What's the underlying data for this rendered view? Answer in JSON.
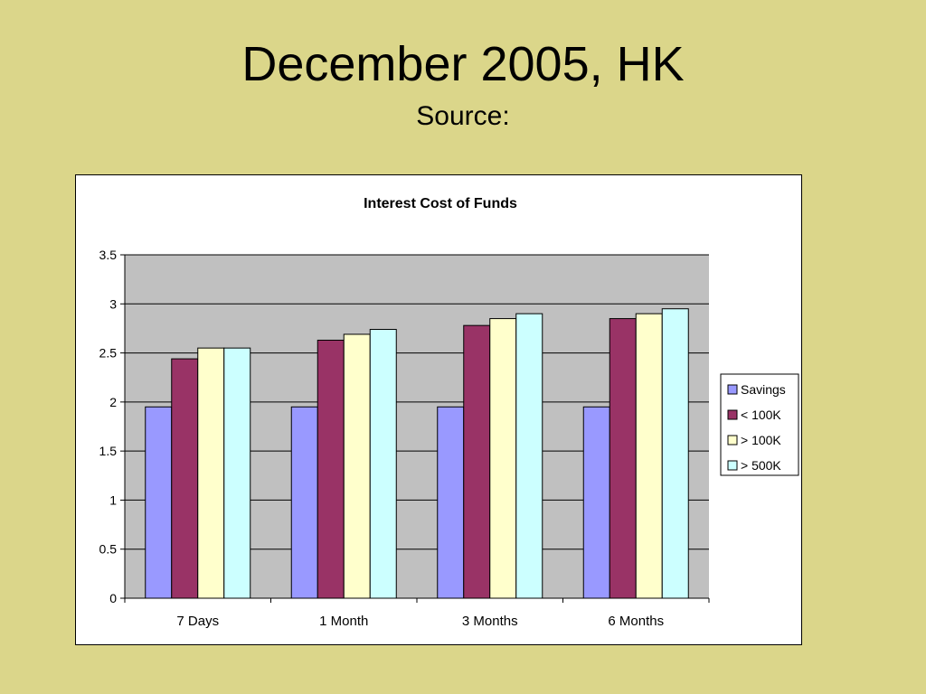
{
  "slide": {
    "title": "December 2005, HK",
    "subtitle": "Source:"
  },
  "chart_data": {
    "type": "bar",
    "title": "Interest Cost of Funds",
    "xlabel": "",
    "ylabel": "",
    "categories": [
      "7 Days",
      "1 Month",
      "3 Months",
      "6 Months"
    ],
    "ylim": [
      0,
      3.5
    ],
    "yticks": [
      "0",
      "0.5",
      "1",
      "1.5",
      "2",
      "2.5",
      "3",
      "3.5"
    ],
    "grid": true,
    "legend_position": "right",
    "plot_background": "#c0c0c0",
    "series": [
      {
        "name": "Savings",
        "color": "#9999ff",
        "values": [
          1.95,
          1.95,
          1.95,
          1.95
        ]
      },
      {
        "name": "< 100K",
        "color": "#993366",
        "values": [
          2.44,
          2.63,
          2.78,
          2.85
        ]
      },
      {
        "name": "> 100K",
        "color": "#ffffcc",
        "values": [
          2.55,
          2.69,
          2.85,
          2.9
        ]
      },
      {
        "name": "> 500K",
        "color": "#ccffff",
        "values": [
          2.55,
          2.74,
          2.9,
          2.95
        ]
      }
    ]
  }
}
